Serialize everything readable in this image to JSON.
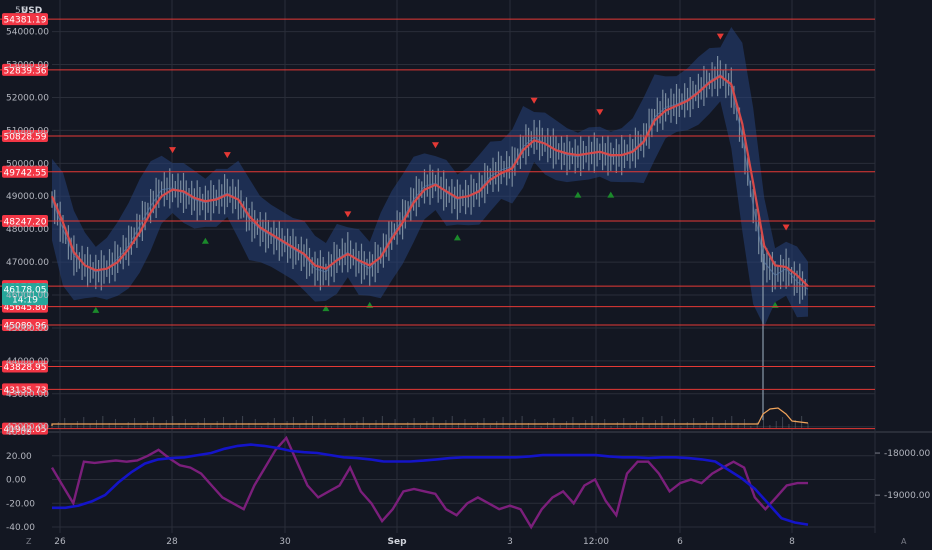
{
  "chart_data": {
    "type": "line",
    "currency": "USD",
    "x_ticks": [
      "26",
      "28",
      "30",
      "Sep",
      "3",
      "12:00",
      "6",
      "8"
    ],
    "y_ticks": [
      "54000.00",
      "53000.00",
      "52000.00",
      "51000.00",
      "50000.00",
      "49000.00",
      "48000.00",
      "47000.00",
      "46000.00",
      "45000.00",
      "44000.00",
      "43000.00",
      "42000.00"
    ],
    "top_tick_partial": "55",
    "ylim": [
      41900,
      54900
    ],
    "levels": [
      "54381.19",
      "52839.36",
      "50828.59",
      "49742.55",
      "48247.20",
      "46270.89",
      "45645.80",
      "45089.96",
      "43828.95",
      "43135.73",
      "41942.05"
    ],
    "current_price": {
      "value": "46178.05",
      "countdown": "14:19"
    },
    "series": [
      {
        "name": "",
        "values": [
          48900,
          48000,
          47200,
          46900,
          46700,
          46800,
          47100,
          47500,
          48100,
          48700,
          49200,
          49250,
          49100,
          48900,
          48800,
          48950,
          49100,
          48900,
          48300,
          48000,
          47800,
          47600,
          47400,
          47200,
          46800,
          46700,
          47100,
          47300,
          47000,
          46800,
          47200,
          47800,
          48300,
          48900,
          49300,
          49400,
          49100,
          48900,
          49000,
          49200,
          49600,
          49800,
          49900,
          50500,
          50800,
          50600,
          50400,
          50250,
          50200,
          50300,
          50350,
          50200,
          50250,
          50400,
          50700,
          51400,
          51700,
          51800,
          51950,
          52200,
          52500,
          52700,
          52300,
          50800,
          48700,
          47000,
          46600,
          46800,
          46400,
          46178
        ]
      },
      {
        "name": "",
        "values": [
          49000,
          48200,
          47300,
          46900,
          46750,
          46800,
          47000,
          47400,
          47900,
          48500,
          49000,
          49200,
          49150,
          48950,
          48850,
          48900,
          49050,
          48900,
          48400,
          48050,
          47850,
          47650,
          47450,
          47250,
          46900,
          46800,
          47050,
          47250,
          47050,
          46900,
          47150,
          47700,
          48200,
          48800,
          49200,
          49350,
          49150,
          48950,
          49000,
          49150,
          49500,
          49700,
          49850,
          50400,
          50700,
          50600,
          50400,
          50300,
          50250,
          50300,
          50350,
          50250,
          50250,
          50350,
          50650,
          51300,
          51600,
          51750,
          51900,
          52150,
          52450,
          52650,
          52400,
          51200,
          49400,
          47500,
          46900,
          46850,
          46600,
          46270
        ]
      }
    ],
    "indicator_left_ticks": [
      "40.00",
      "20.00",
      "0.00",
      "-20.00",
      "-40.00"
    ],
    "indicator_left_ylim": [
      -45,
      40
    ],
    "indicator_right_ticks": [
      "-18000.00",
      "-19000.00"
    ],
    "indicator_right_ylim": [
      -19900,
      -17500
    ],
    "oscillator": {
      "name": "",
      "values": [
        10,
        -5,
        -20,
        15,
        14,
        15,
        16,
        15,
        16,
        20,
        25,
        18,
        12,
        10,
        5,
        -5,
        -15,
        -20,
        -25,
        -5,
        10,
        25,
        35,
        15,
        -5,
        -15,
        -10,
        -5,
        10,
        -10,
        -20,
        -35,
        -25,
        -10,
        -8,
        -10,
        -12,
        -25,
        -30,
        -20,
        -15,
        -20,
        -25,
        -22,
        -25,
        -40,
        -25,
        -15,
        -10,
        -20,
        -5,
        0,
        -18,
        -30,
        5,
        15,
        15,
        5,
        -10,
        -3,
        0,
        -3,
        5,
        10,
        15,
        10,
        -15,
        -25,
        -15,
        -5,
        -3,
        -3
      ]
    },
    "cumulative": {
      "name": "",
      "values": [
        -19300,
        -19300,
        -19250,
        -19150,
        -19000,
        -18700,
        -18450,
        -18250,
        -18150,
        -18120,
        -18100,
        -18050,
        -18000,
        -17900,
        -17830,
        -17800,
        -17830,
        -17880,
        -17950,
        -17980,
        -18000,
        -18050,
        -18100,
        -18120,
        -18150,
        -18200,
        -18200,
        -18200,
        -18180,
        -18150,
        -18120,
        -18100,
        -18100,
        -18100,
        -18100,
        -18100,
        -18080,
        -18050,
        -18050,
        -18050,
        -18050,
        -18050,
        -18080,
        -18100,
        -18100,
        -18120,
        -18100,
        -18100,
        -18120,
        -18150,
        -18200,
        -18400,
        -18600,
        -18850,
        -19200,
        -19550,
        -19650,
        -19700
      ]
    }
  },
  "colors": {
    "background": "#131722",
    "grid": "#2a2e39",
    "level_line": "#e53935",
    "level_label": "#f23645",
    "price_line": "#d64a4a",
    "band": "#27417a",
    "candles": "#8a9bab",
    "volume_line": "#f0a35a",
    "current_label": "#26a69a",
    "oscillator": "#7b1f7b",
    "cumulative": "#1414c8",
    "up_marker": "#1b8a2b",
    "down_marker": "#e53935"
  },
  "ui": {
    "corner_left": "Z",
    "corner_right": "A"
  }
}
